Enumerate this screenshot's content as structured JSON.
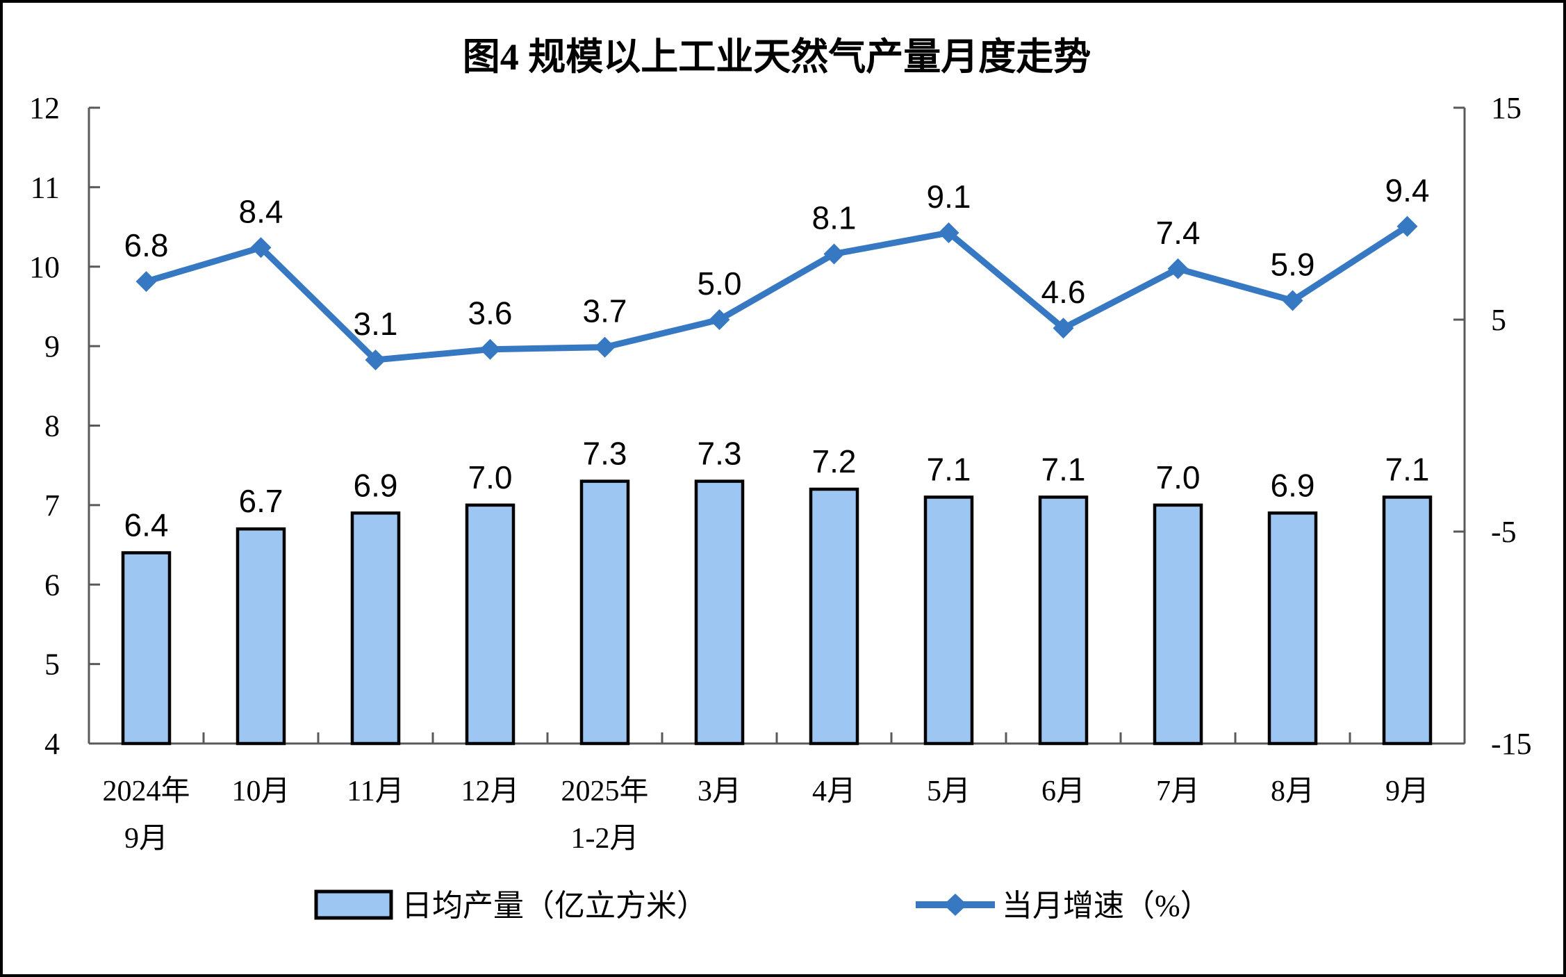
{
  "colors": {
    "bar_fill": "#9DC6F3",
    "bar_border": "#000000",
    "line": "#3778C3",
    "axis": "#595959",
    "text": "#000000",
    "background": "#FFFFFF",
    "frame_border": "#000000"
  },
  "legend": {
    "bar_label": "日均产量（亿立方米）",
    "line_label": "当月增速（%）"
  },
  "chart_data": {
    "type": "combo",
    "title": "图4 规模以上工业天然气产量月度走势",
    "categories": [
      "2024年\n9月",
      "10月",
      "11月",
      "12月",
      "2025年\n1-2月",
      "3月",
      "4月",
      "5月",
      "6月",
      "7月",
      "8月",
      "9月"
    ],
    "series": [
      {
        "name": "日均产量（亿立方米）",
        "type": "bar",
        "y_axis": "left",
        "values": [
          6.4,
          6.7,
          6.9,
          7.0,
          7.3,
          7.3,
          7.2,
          7.1,
          7.1,
          7.0,
          6.9,
          7.1
        ]
      },
      {
        "name": "当月增速（%）",
        "type": "line",
        "y_axis": "right",
        "values": [
          6.8,
          8.4,
          3.1,
          3.6,
          3.7,
          5.0,
          8.1,
          9.1,
          4.6,
          7.4,
          5.9,
          9.4
        ]
      }
    ],
    "left_axis": {
      "min": 4,
      "max": 12,
      "tick_step": 1,
      "ticks": [
        4,
        5,
        6,
        7,
        8,
        9,
        10,
        11,
        12
      ]
    },
    "right_axis": {
      "min": -15,
      "max": 15,
      "tick_step": 10,
      "ticks": [
        15,
        5,
        -5,
        -15
      ]
    },
    "grid": false,
    "data_labels": true,
    "legend_position": "bottom"
  }
}
